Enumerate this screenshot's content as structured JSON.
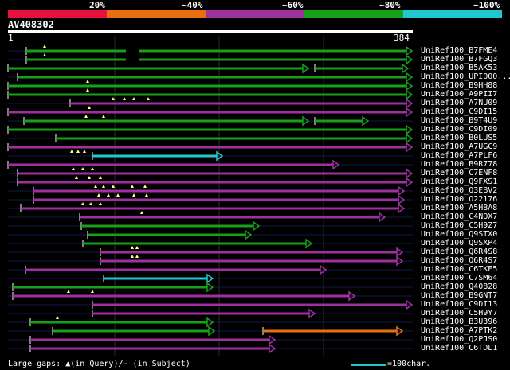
{
  "legend": {
    "labels": [
      "20%",
      "~40%",
      "~60%",
      "~80%",
      "~100%"
    ],
    "colors": [
      "#e8103c",
      "#e87010",
      "#a030a0",
      "#18a018",
      "#20c8d0"
    ]
  },
  "query": {
    "id": "AV408302",
    "start": "1",
    "end": "384",
    "length": 384
  },
  "hits": [
    {
      "name": "UniRef100_B7FME4",
      "color": "#18a018",
      "start": 33,
      "end": 510,
      "arrow": true,
      "q": [
        56
      ],
      "gap": [
        158,
        174
      ]
    },
    {
      "name": "UniRef100_B7FGQ3",
      "color": "#18a018",
      "start": 33,
      "end": 510,
      "arrow": true,
      "q": [
        56
      ],
      "gap": [
        158,
        174
      ]
    },
    {
      "name": "UniRef100_B5AK53",
      "color": "#18a018",
      "start": 10,
      "end": 380,
      "arrow": true,
      "q": [],
      "seg2": [
        395,
        505
      ]
    },
    {
      "name": "UniRef100_UPI000...",
      "color": "#18a018",
      "start": 22,
      "end": 510,
      "arrow": true,
      "q": []
    },
    {
      "name": "UniRef100_B9HH88",
      "color": "#18a018",
      "start": 10,
      "end": 510,
      "arrow": true,
      "q": [
        110
      ]
    },
    {
      "name": "UniRef100_A9PII7",
      "color": "#18a018",
      "start": 10,
      "end": 510,
      "arrow": true,
      "q": [
        110
      ]
    },
    {
      "name": "UniRef100_A7NU09",
      "color": "#a030a0",
      "start": 88,
      "end": 510,
      "arrow": true,
      "q": [
        142,
        156,
        168,
        186
      ]
    },
    {
      "name": "UniRef100_C9DI15",
      "color": "#a030a0",
      "start": 10,
      "end": 510,
      "arrow": true,
      "q": [
        112
      ]
    },
    {
      "name": "UniRef100_B9T4U9",
      "color": "#18a018",
      "start": 30,
      "end": 380,
      "arrow": true,
      "q": [
        108,
        130
      ],
      "seg2": [
        395,
        455
      ]
    },
    {
      "name": "UniRef100_C9DI09",
      "color": "#18a018",
      "start": 10,
      "end": 510,
      "arrow": true,
      "q": []
    },
    {
      "name": "UniRef100_B0LUS5",
      "color": "#18a018",
      "start": 70,
      "end": 510,
      "arrow": true,
      "q": []
    },
    {
      "name": "UniRef100_A7UGC9",
      "color": "#a030a0",
      "start": 10,
      "end": 510,
      "arrow": true,
      "q": []
    },
    {
      "name": "UniRef100_A7PLF6",
      "color": "#20c8d0",
      "start": 116,
      "end": 272,
      "arrow": true,
      "q": [
        90,
        98,
        106
      ]
    },
    {
      "name": "UniRef100_B9R778",
      "color": "#a030a0",
      "start": 10,
      "end": 418,
      "arrow": true,
      "q": []
    },
    {
      "name": "UniRef100_C7ENF8",
      "color": "#a030a0",
      "start": 22,
      "end": 510,
      "arrow": true,
      "q": [
        92,
        104,
        116
      ]
    },
    {
      "name": "UniRef100_Q9FXS1",
      "color": "#a030a0",
      "start": 22,
      "end": 510,
      "arrow": true,
      "q": [
        96,
        112,
        126
      ]
    },
    {
      "name": "UniRef100_Q3EBV2",
      "color": "#a030a0",
      "start": 42,
      "end": 500,
      "arrow": true,
      "q": [
        120,
        130,
        142,
        166,
        182
      ]
    },
    {
      "name": "UniRef100_O22176",
      "color": "#a030a0",
      "start": 42,
      "end": 500,
      "arrow": true,
      "q": [
        124,
        136,
        148,
        168,
        184
      ]
    },
    {
      "name": "UniRef100_A5H8A8",
      "color": "#a030a0",
      "start": 26,
      "end": 500,
      "arrow": true,
      "q": [
        104,
        114,
        126
      ]
    },
    {
      "name": "UniRef100_C4NOX7",
      "color": "#a030a0",
      "start": 100,
      "end": 476,
      "arrow": true,
      "q": [
        178
      ]
    },
    {
      "name": "UniRef100_C5H9Z7",
      "color": "#18a018",
      "start": 102,
      "end": 318,
      "arrow": true,
      "q": []
    },
    {
      "name": "UniRef100_Q9STX0",
      "color": "#18a018",
      "start": 110,
      "end": 308,
      "arrow": true,
      "q": []
    },
    {
      "name": "UniRef100_Q9SXP4",
      "color": "#18a018",
      "start": 104,
      "end": 384,
      "arrow": true,
      "q": []
    },
    {
      "name": "UniRef100_Q6R4S8",
      "color": "#a030a0",
      "start": 126,
      "end": 498,
      "arrow": true,
      "q": [
        166,
        172
      ]
    },
    {
      "name": "UniRef100_Q6R4S7",
      "color": "#a030a0",
      "start": 126,
      "end": 498,
      "arrow": true,
      "q": [
        166,
        172
      ]
    },
    {
      "name": "UniRef100_C6TKE5",
      "color": "#a030a0",
      "start": 32,
      "end": 402,
      "arrow": true,
      "q": []
    },
    {
      "name": "UniRef100_C7SM64",
      "color": "#20c8d0",
      "start": 130,
      "end": 260,
      "arrow": true,
      "q": []
    },
    {
      "name": "UniRef100_Q40828",
      "color": "#18a018",
      "start": 16,
      "end": 260,
      "arrow": true,
      "q": []
    },
    {
      "name": "UniRef100_B9GNT7",
      "color": "#a030a0",
      "start": 16,
      "end": 438,
      "arrow": true,
      "q": [
        86,
        116
      ]
    },
    {
      "name": "UniRef100_C9DI13",
      "color": "#a030a0",
      "start": 116,
      "end": 510,
      "arrow": true,
      "q": []
    },
    {
      "name": "UniRef100_C5H9Y7",
      "color": "#a030a0",
      "start": 116,
      "end": 388,
      "arrow": true,
      "q": []
    },
    {
      "name": "UniRef100_B3U396",
      "color": "#18a018",
      "start": 38,
      "end": 260,
      "arrow": true,
      "q": [
        72
      ]
    },
    {
      "name": "UniRef100_A7PTK2",
      "color": "#18a018",
      "start": 66,
      "end": 262,
      "arrow": true,
      "q": [],
      "seg2c": "#e87010",
      "seg2": [
        330,
        498
      ]
    },
    {
      "name": "UniRef100_Q2PJS0",
      "color": "#a030a0",
      "start": 38,
      "end": 338,
      "arrow": true,
      "q": []
    },
    {
      "name": "UniRef100_C6TDL1",
      "color": "#a030a0",
      "start": 38,
      "end": 338,
      "arrow": true,
      "q": []
    }
  ],
  "footer": {
    "gaps_text": "Large gaps: ▲(in Query)/- (in Subject)",
    "scale_text": "=100char."
  }
}
